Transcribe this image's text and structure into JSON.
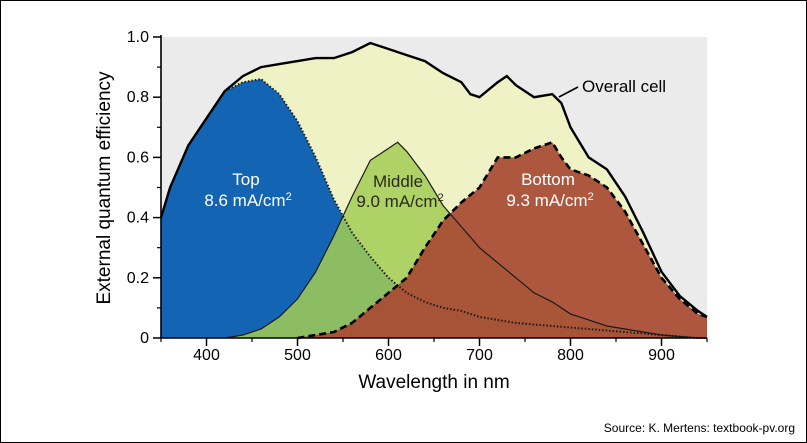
{
  "chart_data": {
    "type": "area",
    "xlabel": "Wavelength in nm",
    "ylabel": "External quantum efficiency",
    "xlim": [
      350,
      950
    ],
    "ylim": [
      0,
      1.0
    ],
    "x_ticks": [
      "400",
      "500",
      "600",
      "700",
      "800",
      "900"
    ],
    "y_ticks": [
      "0",
      "0.2",
      "0.4",
      "0.6",
      "0.8",
      "1.0"
    ],
    "grid": false,
    "colors": {
      "plot_background": "#ebebeb",
      "overall": "#eef2c4",
      "top": "#1365b3",
      "middle": "#a2cc55",
      "bottom": "#a84a33"
    },
    "series": [
      {
        "name": "Overall cell",
        "x": [
          350,
          360,
          380,
          400,
          420,
          440,
          460,
          480,
          500,
          520,
          540,
          560,
          580,
          600,
          620,
          640,
          660,
          680,
          690,
          700,
          720,
          730,
          740,
          760,
          780,
          790,
          800,
          820,
          840,
          860,
          880,
          900,
          920,
          940,
          950
        ],
        "values": [
          0.4,
          0.5,
          0.64,
          0.73,
          0.82,
          0.87,
          0.9,
          0.91,
          0.92,
          0.93,
          0.93,
          0.95,
          0.98,
          0.96,
          0.94,
          0.92,
          0.88,
          0.85,
          0.81,
          0.8,
          0.85,
          0.87,
          0.84,
          0.8,
          0.81,
          0.78,
          0.7,
          0.6,
          0.56,
          0.47,
          0.35,
          0.22,
          0.14,
          0.09,
          0.07
        ]
      },
      {
        "name": "Top",
        "current": "8.6 mA/cm²",
        "x": [
          350,
          360,
          380,
          400,
          420,
          440,
          460,
          480,
          500,
          520,
          540,
          560,
          580,
          600,
          620,
          640,
          660,
          680,
          700,
          720,
          740,
          760,
          780,
          800,
          820,
          840,
          860,
          880,
          900,
          920,
          940,
          950
        ],
        "values": [
          0.4,
          0.5,
          0.64,
          0.73,
          0.82,
          0.85,
          0.86,
          0.81,
          0.72,
          0.6,
          0.46,
          0.35,
          0.27,
          0.2,
          0.15,
          0.12,
          0.1,
          0.09,
          0.07,
          0.06,
          0.05,
          0.045,
          0.04,
          0.035,
          0.03,
          0.025,
          0.02,
          0.015,
          0.01,
          0.005,
          0,
          0
        ]
      },
      {
        "name": "Middle",
        "current": "9.0 mA/cm²",
        "x": [
          420,
          440,
          460,
          480,
          500,
          520,
          540,
          560,
          580,
          600,
          610,
          620,
          640,
          660,
          680,
          700,
          720,
          740,
          760,
          780,
          800,
          820,
          840,
          860,
          880,
          900,
          920,
          940,
          950
        ],
        "values": [
          0,
          0.01,
          0.03,
          0.07,
          0.13,
          0.22,
          0.34,
          0.47,
          0.59,
          0.63,
          0.65,
          0.62,
          0.54,
          0.44,
          0.37,
          0.3,
          0.25,
          0.2,
          0.15,
          0.12,
          0.08,
          0.06,
          0.04,
          0.03,
          0.02,
          0.01,
          0.005,
          0,
          0
        ]
      },
      {
        "name": "Bottom",
        "current": "9.3 mA/cm²",
        "x": [
          500,
          520,
          540,
          560,
          580,
          600,
          620,
          640,
          660,
          680,
          700,
          720,
          740,
          760,
          780,
          790,
          800,
          820,
          840,
          860,
          880,
          900,
          920,
          940,
          950
        ],
        "values": [
          0,
          0.01,
          0.02,
          0.05,
          0.1,
          0.15,
          0.2,
          0.3,
          0.39,
          0.45,
          0.5,
          0.6,
          0.6,
          0.63,
          0.65,
          0.6,
          0.56,
          0.54,
          0.5,
          0.42,
          0.31,
          0.2,
          0.13,
          0.08,
          0.07
        ]
      }
    ],
    "labels": {
      "top_name": "Top",
      "top_current": "8.6 mA/cm",
      "middle_name": "Middle",
      "middle_current": "9.0 mA/cm",
      "bottom_name": "Bottom",
      "bottom_current": "9.3 mA/cm",
      "superscript": "2",
      "overall": "Overall cell"
    },
    "source": "Source: K. Mertens: textbook-pv.org"
  }
}
